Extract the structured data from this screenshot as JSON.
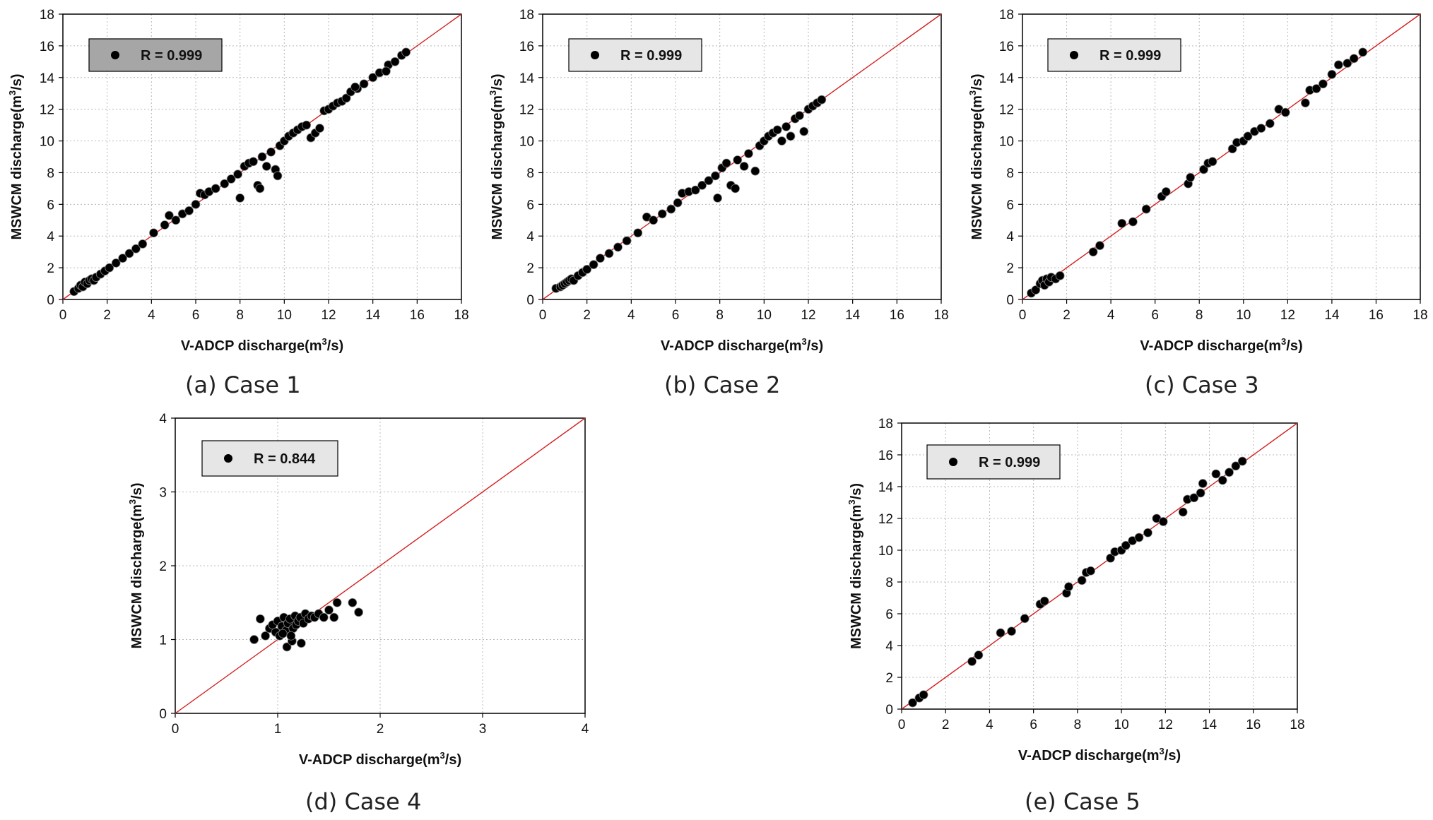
{
  "chart_data": [
    {
      "id": "case1",
      "type": "scatter",
      "caption": "(a) Case 1",
      "xlabel": "V-ADCP discharge(m3/s)",
      "ylabel": "MSWCM discharge(m3/s)",
      "xlim": [
        0,
        18
      ],
      "ylim": [
        0,
        18
      ],
      "xticks": [
        "0",
        "2",
        "4",
        "6",
        "8",
        "10",
        "12",
        "14",
        "16",
        "18"
      ],
      "yticks": [
        "0",
        "2",
        "4",
        "6",
        "8",
        "10",
        "12",
        "14",
        "16",
        "18"
      ],
      "legend_label": "R = 0.999",
      "legend_fill": "#a6a6a6",
      "grid": true,
      "reference_line": "1:1",
      "points": [
        [
          0.5,
          0.5
        ],
        [
          0.7,
          0.7
        ],
        [
          0.8,
          0.9
        ],
        [
          0.9,
          0.8
        ],
        [
          1.0,
          1.1
        ],
        [
          1.1,
          1.0
        ],
        [
          1.2,
          1.2
        ],
        [
          1.3,
          1.3
        ],
        [
          1.4,
          1.2
        ],
        [
          1.5,
          1.4
        ],
        [
          1.7,
          1.6
        ],
        [
          1.9,
          1.8
        ],
        [
          2.1,
          2.0
        ],
        [
          2.4,
          2.3
        ],
        [
          2.7,
          2.6
        ],
        [
          3.0,
          2.9
        ],
        [
          3.3,
          3.2
        ],
        [
          3.6,
          3.5
        ],
        [
          4.1,
          4.2
        ],
        [
          4.6,
          4.7
        ],
        [
          4.8,
          5.3
        ],
        [
          5.1,
          5.0
        ],
        [
          5.4,
          5.4
        ],
        [
          5.7,
          5.6
        ],
        [
          6.0,
          6.0
        ],
        [
          6.2,
          6.7
        ],
        [
          6.4,
          6.6
        ],
        [
          6.6,
          6.8
        ],
        [
          6.9,
          7.0
        ],
        [
          7.3,
          7.3
        ],
        [
          7.6,
          7.6
        ],
        [
          7.9,
          7.9
        ],
        [
          8.0,
          6.4
        ],
        [
          8.2,
          8.4
        ],
        [
          8.4,
          8.6
        ],
        [
          8.6,
          8.7
        ],
        [
          8.8,
          7.2
        ],
        [
          8.9,
          7.0
        ],
        [
          9.0,
          9.0
        ],
        [
          9.2,
          8.4
        ],
        [
          9.4,
          9.3
        ],
        [
          9.6,
          8.2
        ],
        [
          9.7,
          7.8
        ],
        [
          9.8,
          9.7
        ],
        [
          10.0,
          10.0
        ],
        [
          10.2,
          10.3
        ],
        [
          10.4,
          10.5
        ],
        [
          10.6,
          10.7
        ],
        [
          10.8,
          10.9
        ],
        [
          11.0,
          11.0
        ],
        [
          11.2,
          10.2
        ],
        [
          11.4,
          10.5
        ],
        [
          11.6,
          10.8
        ],
        [
          11.8,
          11.9
        ],
        [
          12.0,
          12.0
        ],
        [
          12.2,
          12.2
        ],
        [
          12.4,
          12.4
        ],
        [
          12.6,
          12.5
        ],
        [
          12.8,
          12.7
        ],
        [
          13.0,
          13.1
        ],
        [
          13.3,
          13.3
        ],
        [
          13.6,
          13.6
        ],
        [
          14.0,
          14.0
        ],
        [
          14.3,
          14.3
        ],
        [
          14.7,
          14.8
        ],
        [
          15.0,
          15.0
        ],
        [
          15.3,
          15.4
        ],
        [
          15.5,
          15.6
        ],
        [
          14.6,
          14.4
        ],
        [
          13.2,
          13.4
        ]
      ]
    },
    {
      "id": "case2",
      "type": "scatter",
      "caption": "(b) Case 2",
      "xlabel": "V-ADCP discharge(m3/s)",
      "ylabel": "MSWCM discharge(m3/s)",
      "xlim": [
        0,
        18
      ],
      "ylim": [
        0,
        18
      ],
      "xticks": [
        "0",
        "2",
        "4",
        "6",
        "8",
        "10",
        "12",
        "14",
        "16",
        "18"
      ],
      "yticks": [
        "0",
        "2",
        "4",
        "6",
        "8",
        "10",
        "12",
        "14",
        "16",
        "18"
      ],
      "legend_label": "R = 0.999",
      "legend_fill": "#e6e6e6",
      "grid": true,
      "reference_line": "1:1",
      "points": [
        [
          0.6,
          0.7
        ],
        [
          0.8,
          0.8
        ],
        [
          0.9,
          0.9
        ],
        [
          1.0,
          1.0
        ],
        [
          1.1,
          1.1
        ],
        [
          1.2,
          1.2
        ],
        [
          1.3,
          1.3
        ],
        [
          1.4,
          1.2
        ],
        [
          1.6,
          1.5
        ],
        [
          1.8,
          1.7
        ],
        [
          2.0,
          1.9
        ],
        [
          2.3,
          2.2
        ],
        [
          2.6,
          2.6
        ],
        [
          3.0,
          2.9
        ],
        [
          3.4,
          3.3
        ],
        [
          3.8,
          3.7
        ],
        [
          4.3,
          4.2
        ],
        [
          4.7,
          5.2
        ],
        [
          5.0,
          5.0
        ],
        [
          5.4,
          5.4
        ],
        [
          5.8,
          5.7
        ],
        [
          6.1,
          6.1
        ],
        [
          6.3,
          6.7
        ],
        [
          6.6,
          6.8
        ],
        [
          6.9,
          6.9
        ],
        [
          7.2,
          7.2
        ],
        [
          7.5,
          7.5
        ],
        [
          7.8,
          7.8
        ],
        [
          7.9,
          6.4
        ],
        [
          8.1,
          8.3
        ],
        [
          8.3,
          8.6
        ],
        [
          8.5,
          7.2
        ],
        [
          8.7,
          7.0
        ],
        [
          8.8,
          8.8
        ],
        [
          9.1,
          8.4
        ],
        [
          9.3,
          9.2
        ],
        [
          9.6,
          8.1
        ],
        [
          9.8,
          9.7
        ],
        [
          10.0,
          10.0
        ],
        [
          10.2,
          10.3
        ],
        [
          10.4,
          10.5
        ],
        [
          10.6,
          10.7
        ],
        [
          10.8,
          10.0
        ],
        [
          11.0,
          10.9
        ],
        [
          11.2,
          10.3
        ],
        [
          11.4,
          11.4
        ],
        [
          11.6,
          11.6
        ],
        [
          11.8,
          10.6
        ],
        [
          12.0,
          12.0
        ],
        [
          12.2,
          12.2
        ],
        [
          12.4,
          12.4
        ],
        [
          12.6,
          12.6
        ]
      ]
    },
    {
      "id": "case3",
      "type": "scatter",
      "caption": "(c) Case 3",
      "xlabel": "V-ADCP discharge(m3/s)",
      "ylabel": "MSWCM discharge(m3/s)",
      "xlim": [
        0,
        18
      ],
      "ylim": [
        0,
        18
      ],
      "xticks": [
        "0",
        "2",
        "4",
        "6",
        "8",
        "10",
        "12",
        "14",
        "16",
        "18"
      ],
      "yticks": [
        "0",
        "2",
        "4",
        "6",
        "8",
        "10",
        "12",
        "14",
        "16",
        "18"
      ],
      "legend_label": "R = 0.999",
      "legend_fill": "#e6e6e6",
      "grid": true,
      "reference_line": "1:1",
      "points": [
        [
          0.4,
          0.4
        ],
        [
          0.6,
          0.6
        ],
        [
          0.8,
          1.0
        ],
        [
          0.9,
          1.2
        ],
        [
          1.0,
          0.9
        ],
        [
          1.1,
          1.3
        ],
        [
          1.2,
          1.1
        ],
        [
          1.3,
          1.4
        ],
        [
          1.5,
          1.3
        ],
        [
          1.7,
          1.5
        ],
        [
          3.2,
          3.0
        ],
        [
          3.5,
          3.4
        ],
        [
          4.5,
          4.8
        ],
        [
          5.0,
          4.9
        ],
        [
          5.6,
          5.7
        ],
        [
          6.3,
          6.5
        ],
        [
          6.5,
          6.8
        ],
        [
          7.5,
          7.3
        ],
        [
          7.6,
          7.7
        ],
        [
          8.2,
          8.2
        ],
        [
          8.4,
          8.6
        ],
        [
          8.6,
          8.7
        ],
        [
          9.5,
          9.5
        ],
        [
          9.7,
          9.9
        ],
        [
          10.0,
          10.0
        ],
        [
          10.2,
          10.3
        ],
        [
          10.5,
          10.6
        ],
        [
          10.8,
          10.8
        ],
        [
          11.2,
          11.1
        ],
        [
          11.6,
          12.0
        ],
        [
          11.9,
          11.8
        ],
        [
          12.8,
          12.4
        ],
        [
          13.0,
          13.2
        ],
        [
          13.3,
          13.3
        ],
        [
          13.6,
          13.6
        ],
        [
          14.0,
          14.2
        ],
        [
          14.3,
          14.8
        ],
        [
          14.7,
          14.9
        ],
        [
          15.0,
          15.2
        ],
        [
          15.4,
          15.6
        ]
      ]
    },
    {
      "id": "case4",
      "type": "scatter",
      "caption": "(d) Case 4",
      "xlabel": "V-ADCP discharge(m3/s)",
      "ylabel": "MSWCM discharge(m3/s)",
      "xlim": [
        0,
        4
      ],
      "ylim": [
        0,
        4
      ],
      "xticks": [
        "0",
        "1",
        "2",
        "3",
        "4"
      ],
      "yticks": [
        "0",
        "1",
        "2",
        "3",
        "4"
      ],
      "legend_label": "R = 0.844",
      "legend_fill": "#e6e6e6",
      "grid": true,
      "reference_line": "1:1",
      "points": [
        [
          0.77,
          1.0
        ],
        [
          0.83,
          1.28
        ],
        [
          0.88,
          1.05
        ],
        [
          0.92,
          1.15
        ],
        [
          0.95,
          1.2
        ],
        [
          0.98,
          1.1
        ],
        [
          1.0,
          1.25
        ],
        [
          1.02,
          1.05
        ],
        [
          1.04,
          1.18
        ],
        [
          1.06,
          1.3
        ],
        [
          1.08,
          1.12
        ],
        [
          1.09,
          0.9
        ],
        [
          1.1,
          1.22
        ],
        [
          1.12,
          1.28
        ],
        [
          1.14,
          0.98
        ],
        [
          1.15,
          1.15
        ],
        [
          1.17,
          1.32
        ],
        [
          1.18,
          1.2
        ],
        [
          1.2,
          1.25
        ],
        [
          1.22,
          1.3
        ],
        [
          1.23,
          0.95
        ],
        [
          1.25,
          1.22
        ],
        [
          1.27,
          1.35
        ],
        [
          1.3,
          1.28
        ],
        [
          1.33,
          1.32
        ],
        [
          1.36,
          1.3
        ],
        [
          1.4,
          1.35
        ],
        [
          1.45,
          1.3
        ],
        [
          1.5,
          1.4
        ],
        [
          1.55,
          1.3
        ],
        [
          1.58,
          1.5
        ],
        [
          1.73,
          1.5
        ],
        [
          1.79,
          1.37
        ],
        [
          1.05,
          1.08
        ],
        [
          1.13,
          1.05
        ]
      ]
    },
    {
      "id": "case5",
      "type": "scatter",
      "caption": "(e) Case 5",
      "xlabel": "V-ADCP discharge(m3/s)",
      "ylabel": "MSWCM discharge(m3/s)",
      "xlim": [
        0,
        18
      ],
      "ylim": [
        0,
        18
      ],
      "xticks": [
        "0",
        "2",
        "4",
        "6",
        "8",
        "10",
        "12",
        "14",
        "16",
        "18"
      ],
      "yticks": [
        "0",
        "2",
        "4",
        "6",
        "8",
        "10",
        "12",
        "14",
        "16",
        "18"
      ],
      "legend_label": "R = 0.999",
      "legend_fill": "#e6e6e6",
      "grid": true,
      "reference_line": "1:1",
      "points": [
        [
          0.5,
          0.4
        ],
        [
          0.8,
          0.7
        ],
        [
          1.0,
          0.9
        ],
        [
          3.2,
          3.0
        ],
        [
          3.5,
          3.4
        ],
        [
          4.5,
          4.8
        ],
        [
          5.0,
          4.9
        ],
        [
          5.6,
          5.7
        ],
        [
          6.3,
          6.6
        ],
        [
          6.5,
          6.8
        ],
        [
          7.5,
          7.3
        ],
        [
          7.6,
          7.7
        ],
        [
          8.2,
          8.1
        ],
        [
          8.4,
          8.6
        ],
        [
          8.6,
          8.7
        ],
        [
          9.5,
          9.5
        ],
        [
          9.7,
          9.9
        ],
        [
          10.0,
          10.0
        ],
        [
          10.2,
          10.3
        ],
        [
          10.5,
          10.6
        ],
        [
          10.8,
          10.8
        ],
        [
          11.2,
          11.1
        ],
        [
          11.6,
          12.0
        ],
        [
          11.9,
          11.8
        ],
        [
          12.8,
          12.4
        ],
        [
          13.0,
          13.2
        ],
        [
          13.3,
          13.3
        ],
        [
          13.6,
          13.6
        ],
        [
          13.7,
          14.2
        ],
        [
          14.3,
          14.8
        ],
        [
          14.6,
          14.4
        ],
        [
          14.9,
          14.9
        ],
        [
          15.2,
          15.3
        ],
        [
          15.5,
          15.6
        ]
      ]
    }
  ]
}
